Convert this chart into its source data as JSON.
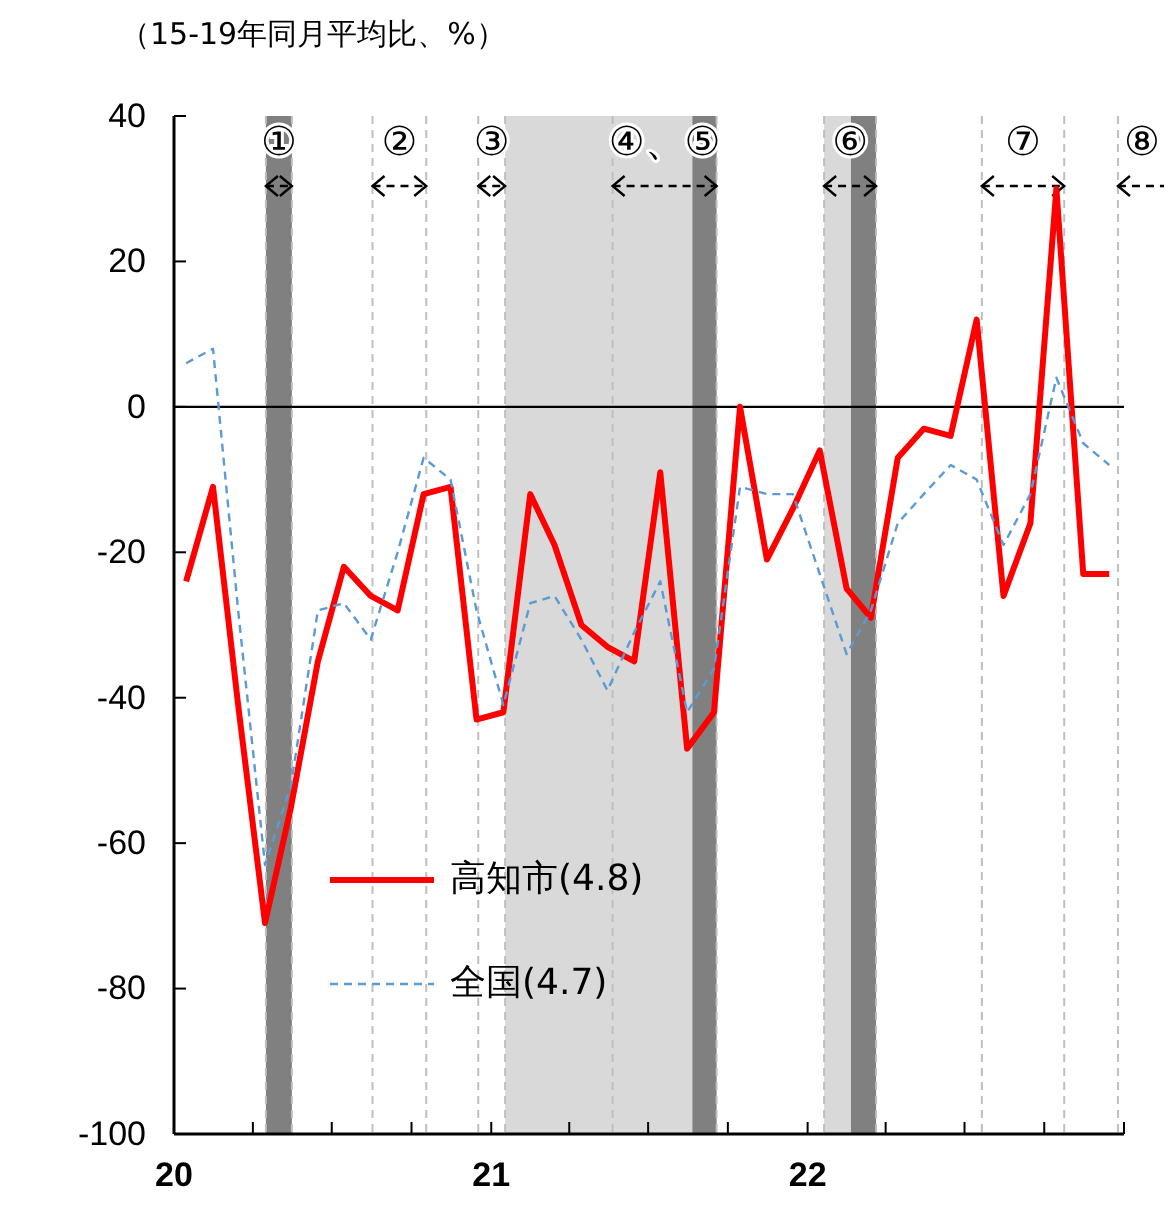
{
  "chart_data": {
    "type": "line",
    "ylabel": "（15-19年同月平均比、%）",
    "x": [
      "2020-01-15",
      "2020-02-15",
      "2020-03-15",
      "2020-04-15",
      "2020-05-15",
      "2020-06-15",
      "2020-07-15",
      "2020-08-15",
      "2020-09-15",
      "2020-10-15",
      "2020-11-15",
      "2020-12-15",
      "2021-01-15",
      "2021-02-15",
      "2021-03-15",
      "2021-04-15",
      "2021-05-15",
      "2021-06-15",
      "2021-07-15",
      "2021-08-15",
      "2021-09-15",
      "2021-10-15",
      "2021-11-15",
      "2021-12-15",
      "2022-01-15",
      "2022-02-15",
      "2022-03-15",
      "2022-04-15",
      "2022-05-15",
      "2022-06-15",
      "2022-07-15",
      "2022-08-15",
      "2022-09-15",
      "2022-10-15",
      "2022-11-15",
      "2022-12-15"
    ],
    "series": [
      {
        "name": "高知市(4.8)",
        "color": "#ff0000",
        "line_style": "solid",
        "values": [
          -24,
          -11,
          -41,
          -71,
          -55,
          -35,
          -22,
          -26,
          -28,
          -12,
          -11,
          -43,
          -42,
          -12,
          -19,
          -30,
          -33,
          -35,
          -9,
          -47,
          -42,
          0,
          -21,
          -14,
          -6,
          -25,
          -29,
          -7,
          -3,
          -4,
          12,
          -26,
          -16,
          30,
          -23,
          -23
        ]
      },
      {
        "name": "全国(4.7)",
        "color": "#5b9bd5",
        "line_style": "dashed",
        "values": [
          6,
          8,
          -28,
          -63,
          -52,
          -28,
          -27,
          -32,
          -20,
          -7,
          -10,
          -28,
          -41,
          -27,
          -26,
          -32,
          -39,
          -31,
          -24,
          -42,
          -36,
          -11,
          -12,
          -12,
          -23,
          -34,
          -28,
          -16,
          -12,
          -8,
          -10,
          -19,
          -12,
          4,
          -5,
          -8
        ]
      }
    ],
    "xlim": [
      "2020-01-01",
      "2023-01-01"
    ],
    "xticks": [
      {
        "value": "2020-01-01",
        "label": "20"
      },
      {
        "value": "2020-04-01",
        "label": null
      },
      {
        "value": "2020-07-01",
        "label": null
      },
      {
        "value": "2020-10-01",
        "label": null
      },
      {
        "value": "2021-01-01",
        "label": "21"
      },
      {
        "value": "2021-04-01",
        "label": null
      },
      {
        "value": "2021-07-01",
        "label": null
      },
      {
        "value": "2021-10-01",
        "label": null
      },
      {
        "value": "2022-01-01",
        "label": "22"
      },
      {
        "value": "2022-04-01",
        "label": null
      },
      {
        "value": "2022-07-01",
        "label": null
      },
      {
        "value": "2022-10-01",
        "label": null
      },
      {
        "value": "2023-01-01",
        "label": null
      }
    ],
    "ylim": [
      -100,
      40
    ],
    "yticks": [
      -100,
      -80,
      -60,
      -40,
      -20,
      0,
      20,
      40
    ],
    "legend": "bottom left",
    "marker": "none",
    "bands": [
      {
        "axis": "x",
        "from": "2020-04-16",
        "to": "2020-05-16",
        "color": "#808080"
      },
      {
        "axis": "x",
        "from": "2021-01-17",
        "to": "2021-08-21",
        "color": "#d9d9d9"
      },
      {
        "axis": "x",
        "from": "2021-08-21",
        "to": "2021-09-18",
        "color": "#808080"
      },
      {
        "axis": "x",
        "from": "2022-01-20",
        "to": "2022-02-20",
        "color": "#d9d9d9"
      },
      {
        "axis": "x",
        "from": "2022-02-20",
        "to": "2022-03-21",
        "color": "#808080"
      }
    ],
    "ref_lines": [
      {
        "axis": "x",
        "value": "2020-04-16",
        "color": "#bfbfbf",
        "line_style": "dashed",
        "label": "①"
      },
      {
        "axis": "x",
        "value": "2020-05-16",
        "color": "#bfbfbf",
        "line_style": "dashed"
      },
      {
        "axis": "x",
        "value": "2020-08-17",
        "color": "#bfbfbf",
        "line_style": "dashed",
        "label": "②"
      },
      {
        "axis": "x",
        "value": "2020-10-18",
        "color": "#bfbfbf",
        "line_style": "dashed"
      },
      {
        "axis": "x",
        "value": "2020-12-17",
        "color": "#bfbfbf",
        "line_style": "dashed",
        "label": "③"
      },
      {
        "axis": "x",
        "value": "2021-01-17",
        "color": "#bfbfbf",
        "line_style": "dashed"
      },
      {
        "axis": "x",
        "value": "2021-05-21",
        "color": "#bfbfbf",
        "line_style": "dashed",
        "label": "④、⑤"
      },
      {
        "axis": "x",
        "value": "2021-09-18",
        "color": "#bfbfbf",
        "line_style": "dashed"
      },
      {
        "axis": "x",
        "value": "2022-01-20",
        "color": "#bfbfbf",
        "line_style": "dashed",
        "label": "⑥"
      },
      {
        "axis": "x",
        "value": "2022-03-21",
        "color": "#bfbfbf",
        "line_style": "dashed"
      },
      {
        "axis": "x",
        "value": "2022-07-21",
        "color": "#bfbfbf",
        "line_style": "dashed",
        "label": "⑦"
      },
      {
        "axis": "x",
        "value": "2022-10-24",
        "color": "#bfbfbf",
        "line_style": "dashed"
      },
      {
        "axis": "x",
        "value": "2022-12-25",
        "color": "#bfbfbf",
        "line_style": "dashed",
        "label": "⑧"
      },
      {
        "axis": "y",
        "value": 0,
        "color": "#000000",
        "line_style": "solid"
      }
    ]
  }
}
